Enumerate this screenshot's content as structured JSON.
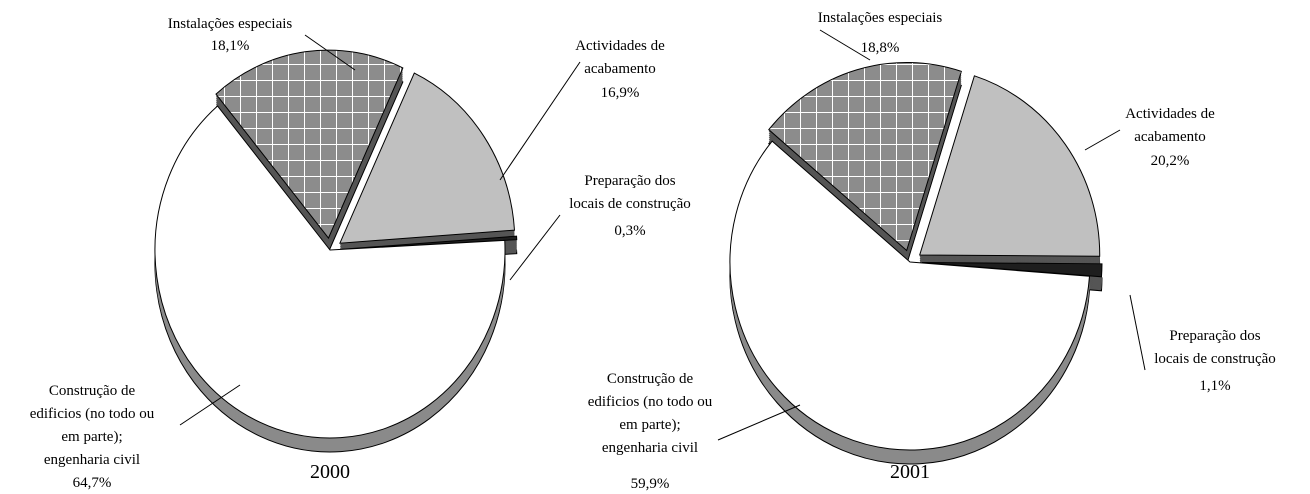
{
  "chart_data": [
    {
      "type": "pie",
      "title": "2000",
      "categories": [
        "Instalações especiais",
        "Actividades de\nacabamento",
        "Preparação dos\nlocais de construção",
        "Construção  de\nedificios (no todo ou\nem parte);\nengenharia civil"
      ],
      "values": [
        18.1,
        16.9,
        0.3,
        64.7
      ],
      "value_labels": [
        "18,1%",
        "16,9%",
        "0,3%",
        "64,7%"
      ],
      "colors": [
        "#8c8c8c",
        "#c0c0c0",
        "#1e1e1e",
        "#ffffff"
      ]
    },
    {
      "type": "pie",
      "title": "2001",
      "categories": [
        "Instalações especiais",
        "Actividades de\nacabamento",
        "Preparação dos\nlocais de construção",
        "Construção  de\nedificios (no todo ou\nem parte);\nengenharia civil"
      ],
      "values": [
        18.8,
        20.2,
        1.1,
        59.9
      ],
      "value_labels": [
        "18,8%",
        "20,2%",
        "1,1%",
        "59,9%"
      ],
      "colors": [
        "#8c8c8c",
        "#c0c0c0",
        "#1e1e1e",
        "#ffffff"
      ]
    }
  ]
}
